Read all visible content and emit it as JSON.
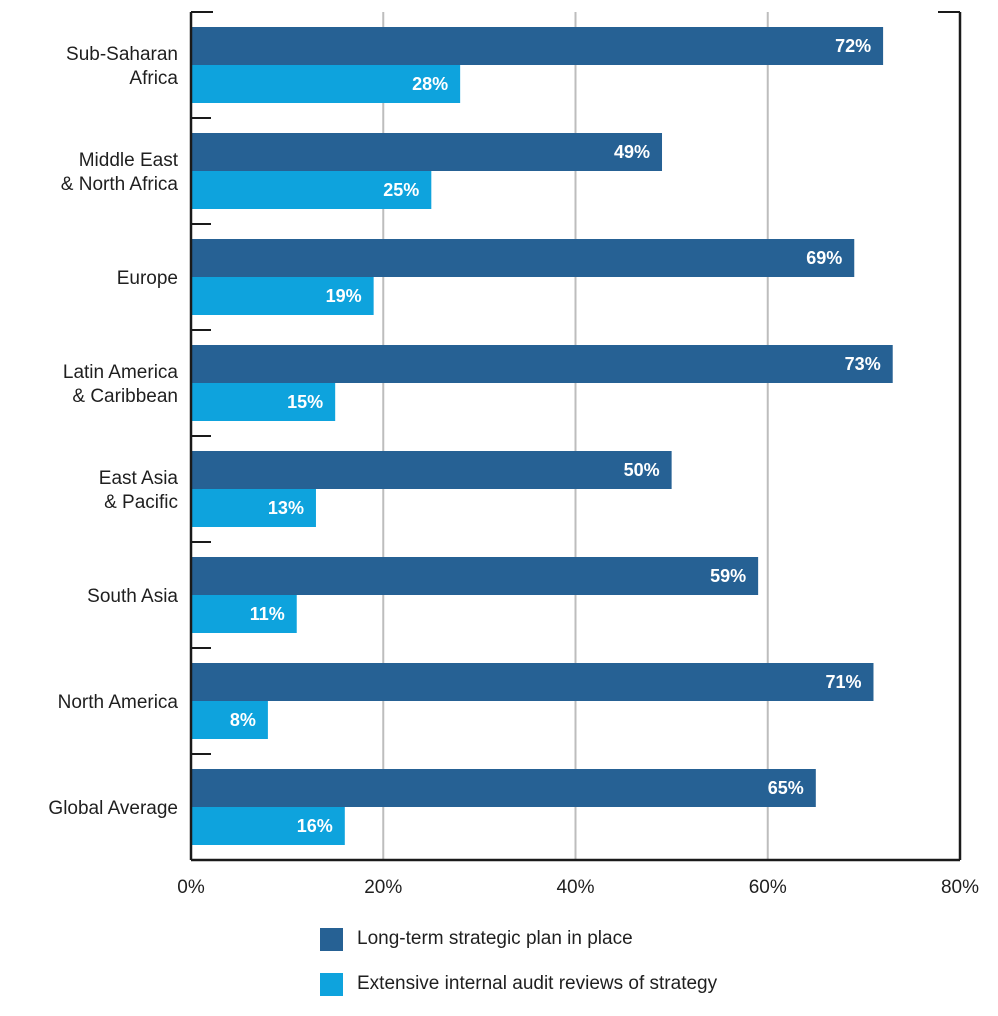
{
  "chart_data": {
    "type": "bar",
    "orientation": "horizontal",
    "categories": [
      [
        "Sub-Saharan",
        "Africa"
      ],
      [
        "Middle East",
        "& North Africa"
      ],
      [
        "Europe"
      ],
      [
        "Latin America",
        "& Caribbean"
      ],
      [
        "East Asia",
        "& Pacific"
      ],
      [
        "South Asia"
      ],
      [
        "North America"
      ],
      [
        "Global Average"
      ]
    ],
    "series": [
      {
        "name": "Long-term strategic plan in place",
        "color": "#266194",
        "values": [
          72,
          49,
          69,
          73,
          50,
          59,
          71,
          65
        ]
      },
      {
        "name": "Extensive internal audit reviews of strategy",
        "color": "#0ea3dd",
        "values": [
          28,
          25,
          19,
          15,
          13,
          11,
          8,
          16
        ]
      }
    ],
    "value_suffix": "%",
    "xlim": [
      0,
      80
    ],
    "xticks": [
      0,
      20,
      40,
      60,
      80
    ],
    "xtick_labels": [
      "0%",
      "20%",
      "40%",
      "60%",
      "80%"
    ],
    "grid": true,
    "legend_position": "bottom",
    "title": "",
    "xlabel": "",
    "ylabel": ""
  }
}
